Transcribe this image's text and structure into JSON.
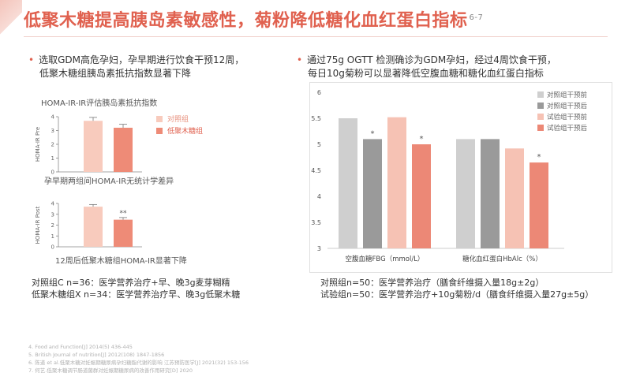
{
  "title": "低聚木糖提高胰岛素敏感性，菊粉降低糖化血红蛋白指标",
  "title_sup": "6-7",
  "left": {
    "bullet_line1": "选取GDM高危孕妇，孕早期进行饮食干预12周，",
    "bullet_line2": "低聚木糖组胰岛素抵抗指数显著下降",
    "chart_heading": "HOMA-IR-IR评估胰岛素抵抗指数",
    "caption1": "孕早期两组间HOMA-IR无统计学差异",
    "caption2": "12周后低聚木糖组HOMA-IR显著下降",
    "note1": "对照组C n=36：医学营养治疗+早、晚3g麦芽糊精",
    "note2": "低聚木糖组X n=34：医学营养治疗早、晚3g低聚木糖"
  },
  "right": {
    "bullet_line1": "通过75g OGTT 检测确诊为GDM孕妇，经过4周饮食干预，",
    "bullet_line2": "每日10g菊粉可以显著降低空腹血糖和糖化血红蛋白指标",
    "note1": "对照组n=50：医学营养治疗（膳食纤维摄入量18g±2g）",
    "note2": "试验组n=50：医学营养治疗+10g菊粉/d（膳食纤维摄入量27g±5g）"
  },
  "footnotes": [
    "4. Food and Function[J] 2014(5) 436-445",
    "5. British Journal of nutrition[J] 2012(108) 1847-1856",
    "6. 陈道 et al.低聚木糖对妊娠期糖尿病孕妇糖脂代谢的影响 江苏预防医学[J] 2021(32) 153-156",
    "7. 何艺.低聚木糖调节肠道菌群对妊娠期糖尿病的改善作用研究[D] 2020"
  ],
  "colors": {
    "accent": "#e0614f",
    "control_pre": "#cfcfcf",
    "control_post": "#9a9a9a",
    "trial_pre": "#f6c2b4",
    "trial_post": "#ec8876",
    "left_control": "#f8cbbd",
    "left_trial": "#ee8b77"
  },
  "chart_data": [
    {
      "type": "bar",
      "ylabel": "HOMA-IR Pre",
      "ylim": [
        0,
        4
      ],
      "yticks": [
        "0",
        "1",
        "2",
        "3",
        "4"
      ],
      "categories": [
        "对照组",
        "低聚木糖组"
      ],
      "values": [
        3.7,
        3.2
      ],
      "errors": [
        0.25,
        0.25
      ],
      "legend": [
        "对照组",
        "低聚木糖组"
      ],
      "annotation": ""
    },
    {
      "type": "bar",
      "ylabel": "HOMA-IR Post",
      "ylim": [
        0,
        4
      ],
      "yticks": [
        "0",
        "1",
        "2",
        "3",
        "4"
      ],
      "categories": [
        "对照组",
        "低聚木糖组"
      ],
      "values": [
        3.7,
        2.5
      ],
      "errors": [
        0.2,
        0.2
      ],
      "annotation": "**"
    },
    {
      "type": "bar",
      "ylim": [
        3,
        6
      ],
      "yticks": [
        "3",
        "3.5",
        "4",
        "4.5",
        "5",
        "5.5",
        "6"
      ],
      "categories": [
        "空腹血糖FBG（mmol/L）",
        "糖化血红蛋白HbAlc（%）"
      ],
      "series": [
        {
          "name": "对照组干预前",
          "values": [
            5.5,
            5.1
          ]
        },
        {
          "name": "对照组干预后",
          "values": [
            5.1,
            5.1
          ]
        },
        {
          "name": "试验组干预前",
          "values": [
            5.52,
            4.92
          ]
        },
        {
          "name": "试验组干预后",
          "values": [
            5.0,
            4.65
          ]
        }
      ],
      "significance": [
        {
          "series": 1,
          "category": 0,
          "mark": "*"
        },
        {
          "series": 3,
          "category": 0,
          "mark": "*"
        },
        {
          "series": 3,
          "category": 1,
          "mark": "*"
        }
      ],
      "legend_position": "top-right"
    }
  ]
}
